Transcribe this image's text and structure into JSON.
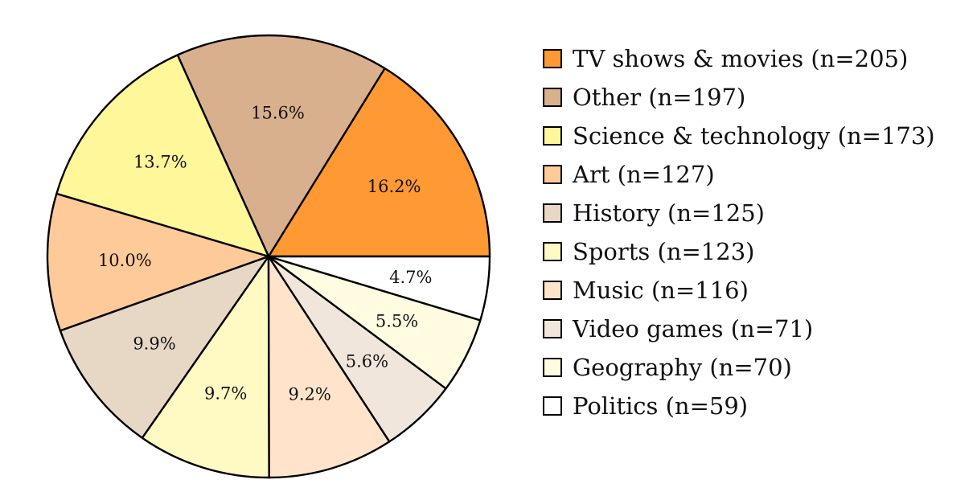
{
  "chart_data": {
    "type": "pie",
    "title": "",
    "start_angle_deg": 0,
    "direction": "counterclockwise",
    "legend_position": "right",
    "slices": [
      {
        "label": "TV shows & movies",
        "legend": "TV shows & movies (n=205)",
        "count": 205,
        "percent": 16.2,
        "percent_label": "16.2%",
        "color": "#FF9933"
      },
      {
        "label": "Other",
        "legend": "Other (n=197)",
        "count": 197,
        "percent": 15.6,
        "percent_label": "15.6%",
        "color": "#D8B08D"
      },
      {
        "label": "Science & technology",
        "legend": "Science & technology (n=173)",
        "count": 173,
        "percent": 13.7,
        "percent_label": "13.7%",
        "color": "#FFF79A"
      },
      {
        "label": "Art",
        "legend": "Art (n=127)",
        "count": 127,
        "percent": 10.0,
        "percent_label": "10.0%",
        "color": "#FFCA99"
      },
      {
        "label": "History",
        "legend": "History (n=125)",
        "count": 125,
        "percent": 9.9,
        "percent_label": "9.9%",
        "color": "#E7D7C5"
      },
      {
        "label": "Sports",
        "legend": "Sports (n=123)",
        "count": 123,
        "percent": 9.7,
        "percent_label": "9.7%",
        "color": "#FFF9C4"
      },
      {
        "label": "Music",
        "legend": "Music (n=116)",
        "count": 116,
        "percent": 9.2,
        "percent_label": "9.2%",
        "color": "#FFE4CB"
      },
      {
        "label": "Video games",
        "legend": "Video games (n=71)",
        "count": 71,
        "percent": 5.6,
        "percent_label": "5.6%",
        "color": "#F0E6DB"
      },
      {
        "label": "Geography",
        "legend": "Geography (n=70)",
        "count": 70,
        "percent": 5.5,
        "percent_label": "5.5%",
        "color": "#FFFCE2"
      },
      {
        "label": "Politics",
        "legend": "Politics (n=59)",
        "count": 59,
        "percent": 4.7,
        "percent_label": "4.7%",
        "color": "#FFFFFF"
      }
    ]
  }
}
